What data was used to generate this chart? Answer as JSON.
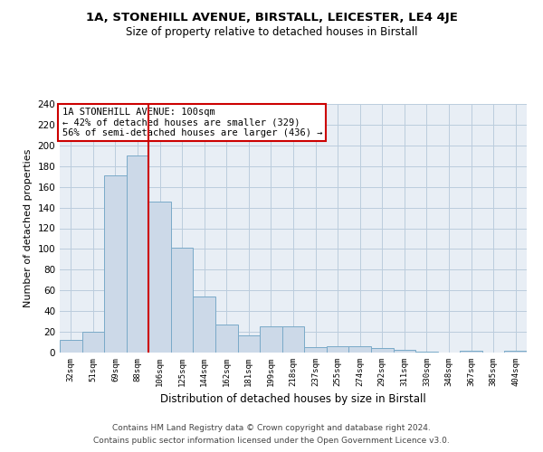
{
  "title1": "1A, STONEHILL AVENUE, BIRSTALL, LEICESTER, LE4 4JE",
  "title2": "Size of property relative to detached houses in Birstall",
  "xlabel": "Distribution of detached houses by size in Birstall",
  "ylabel": "Number of detached properties",
  "categories": [
    "32sqm",
    "51sqm",
    "69sqm",
    "88sqm",
    "106sqm",
    "125sqm",
    "144sqm",
    "162sqm",
    "181sqm",
    "199sqm",
    "218sqm",
    "237sqm",
    "255sqm",
    "274sqm",
    "292sqm",
    "311sqm",
    "330sqm",
    "348sqm",
    "367sqm",
    "385sqm",
    "404sqm"
  ],
  "values": [
    12,
    20,
    171,
    190,
    146,
    101,
    54,
    27,
    17,
    25,
    25,
    5,
    6,
    6,
    4,
    3,
    1,
    0,
    2,
    0,
    2
  ],
  "bar_color": "#ccd9e8",
  "bar_edge_color": "#7aaac8",
  "grid_color": "#bbccdd",
  "bg_color": "#e8eef5",
  "red_line_index": 4,
  "annotation_text": "1A STONEHILL AVENUE: 100sqm\n← 42% of detached houses are smaller (329)\n56% of semi-detached houses are larger (436) →",
  "annotation_box_color": "#ffffff",
  "annotation_border_color": "#cc0000",
  "footer1": "Contains HM Land Registry data © Crown copyright and database right 2024.",
  "footer2": "Contains public sector information licensed under the Open Government Licence v3.0.",
  "ylim": [
    0,
    240
  ],
  "yticks": [
    0,
    20,
    40,
    60,
    80,
    100,
    120,
    140,
    160,
    180,
    200,
    220,
    240
  ],
  "title1_fontsize": 9.5,
  "title2_fontsize": 8.5,
  "ylabel_fontsize": 8,
  "xlabel_fontsize": 8.5
}
